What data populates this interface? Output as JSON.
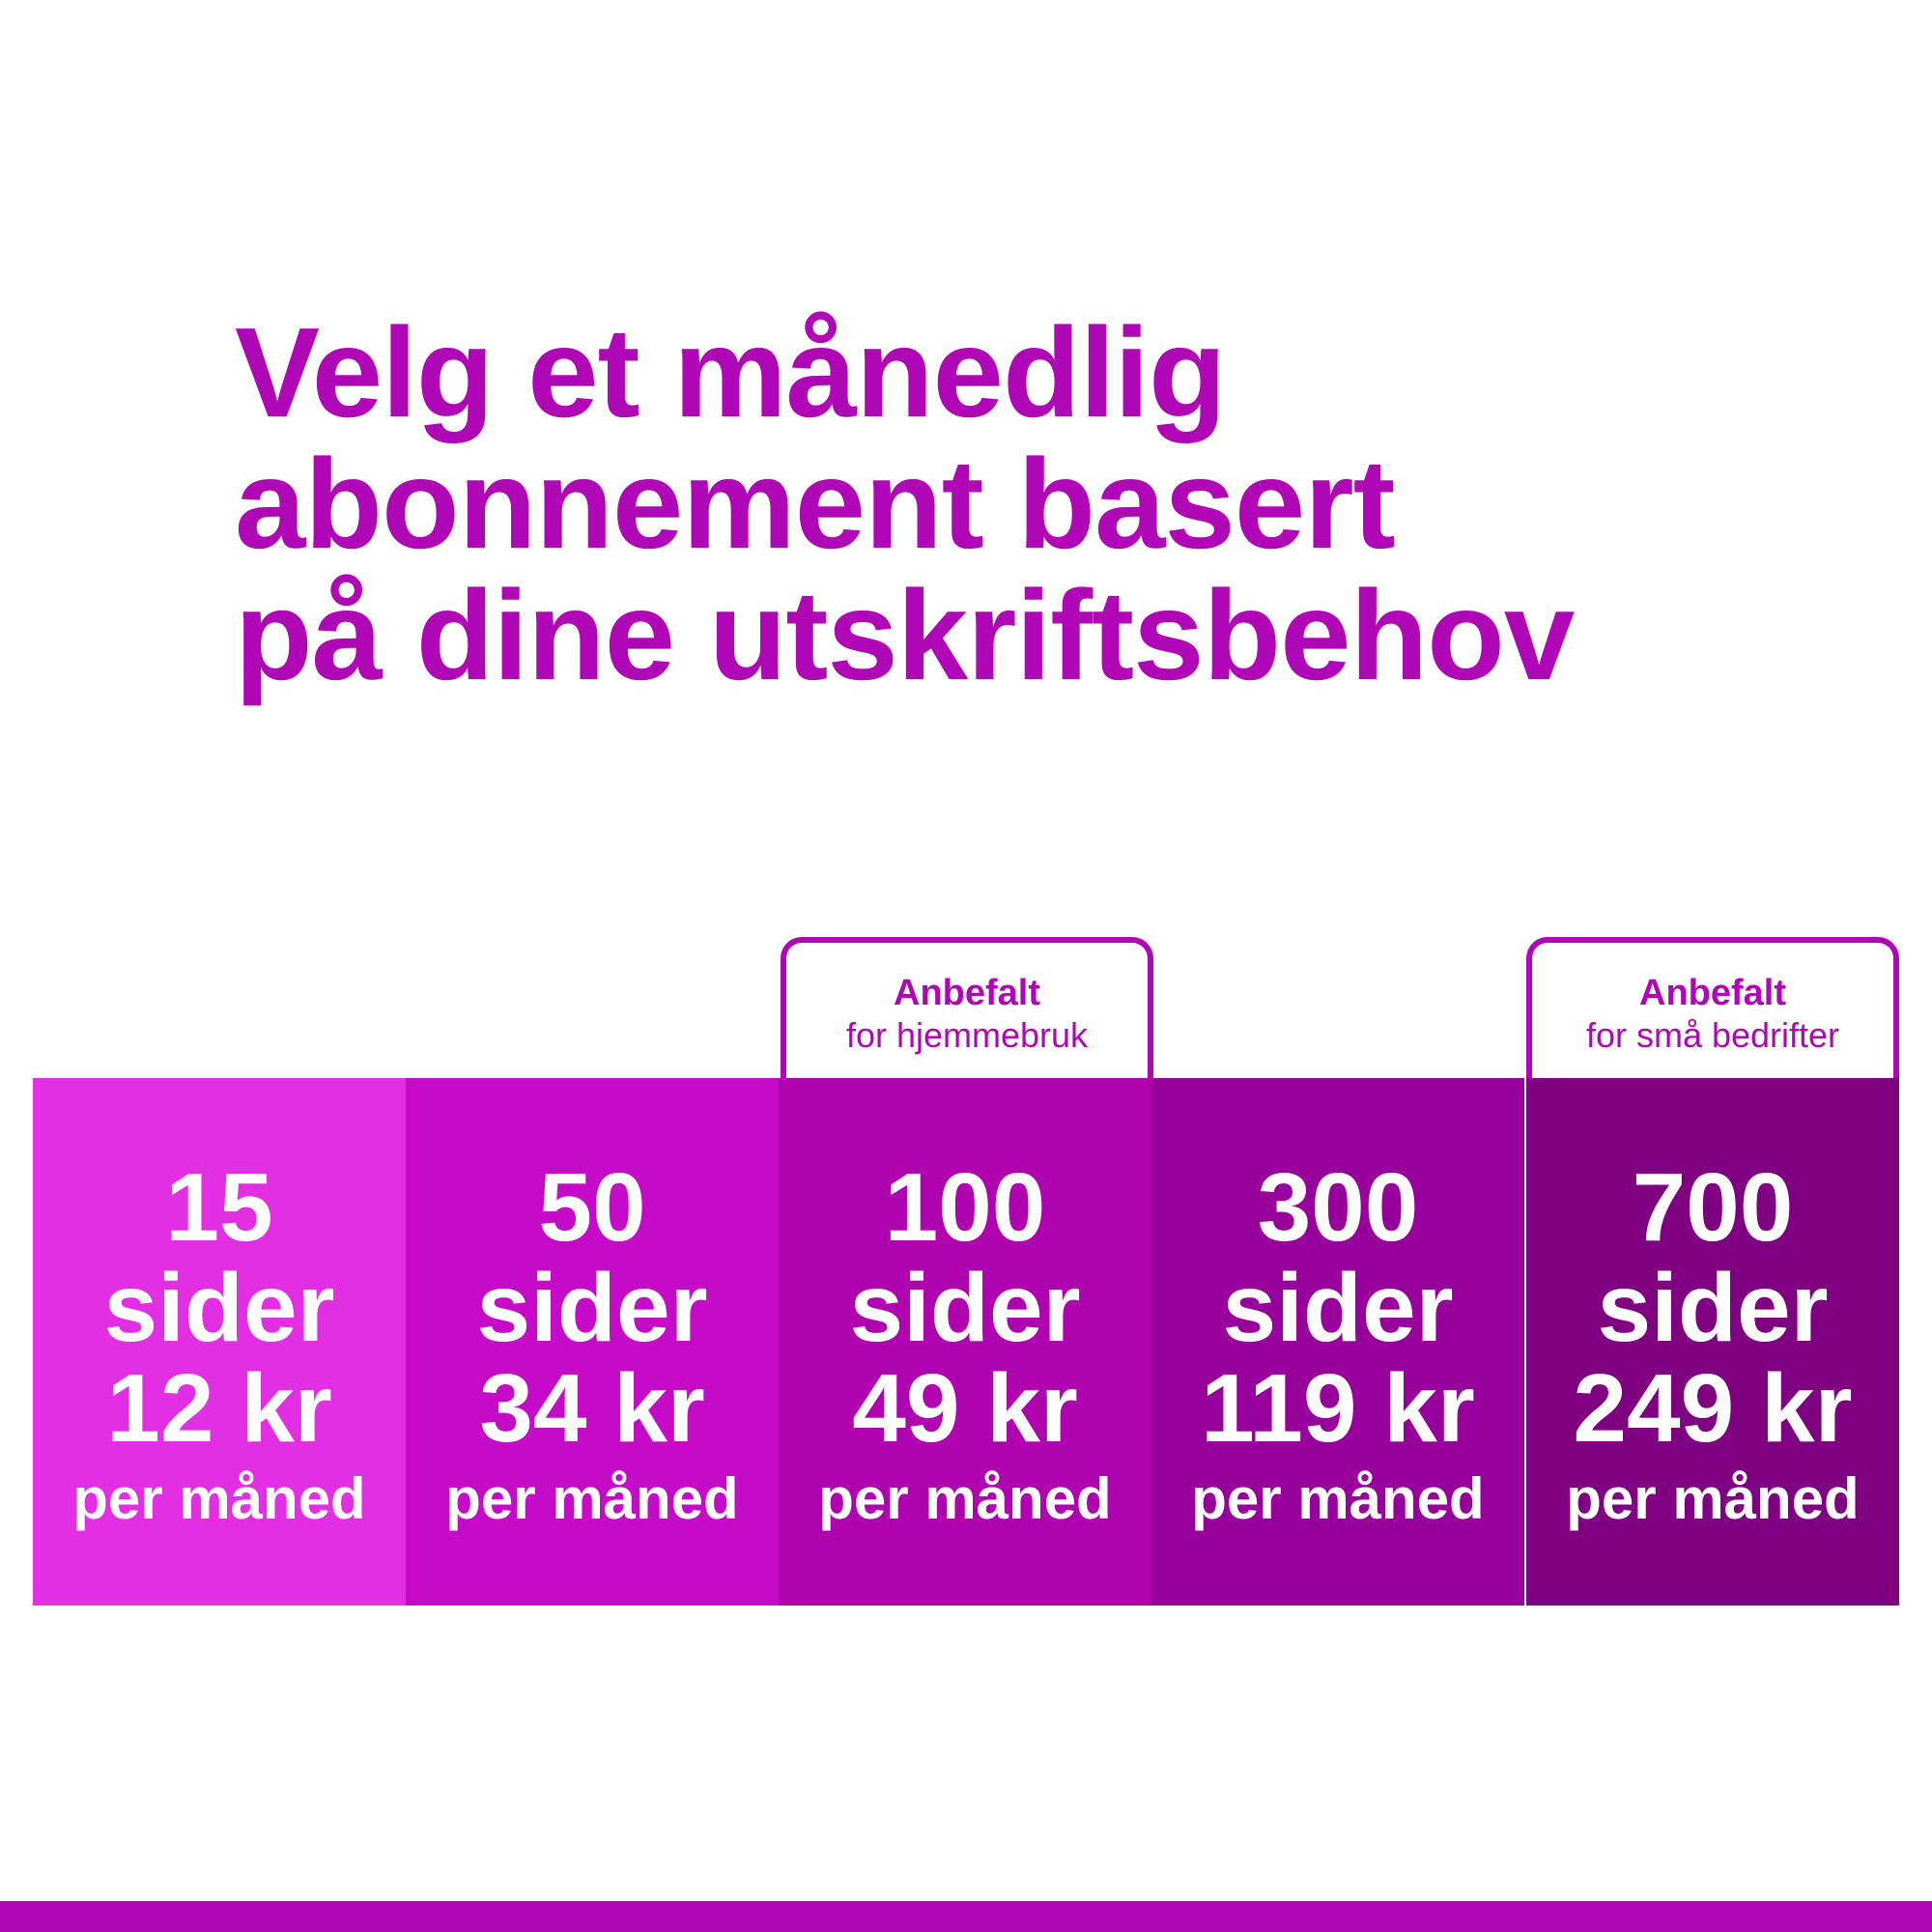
{
  "headline": {
    "line1": "Velg et månedlig",
    "line2": "abonnement basert",
    "line3": "på dine utskriftsbehov"
  },
  "colors": {
    "accent": "#b007b6",
    "plan_15": "#e22fe3",
    "plan_50": "#c50bc7",
    "plan_100": "#af03b0",
    "plan_300": "#97009a",
    "plan_700": "#800082"
  },
  "plans": [
    {
      "qty": "15",
      "unit": "sider",
      "price": "12 kr",
      "period": "per måned"
    },
    {
      "qty": "50",
      "unit": "sider",
      "price": "34 kr",
      "period": "per måned"
    },
    {
      "qty": "100",
      "unit": "sider",
      "price": "49 kr",
      "period": "per måned"
    },
    {
      "qty": "300",
      "unit": "sider",
      "price": "119 kr",
      "period": "per måned"
    },
    {
      "qty": "700",
      "unit": "sider",
      "price": "249 kr",
      "period": "per måned"
    }
  ],
  "badges": {
    "home": {
      "title": "Anbefalt",
      "subtitle": "for hjemmebruk"
    },
    "business": {
      "title": "Anbefalt",
      "subtitle": "for små bedrifter"
    }
  }
}
